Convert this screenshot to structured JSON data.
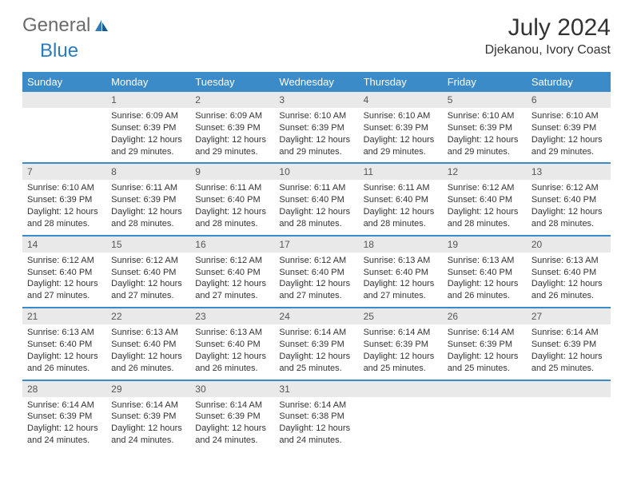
{
  "logo": {
    "general": "General",
    "blue": "Blue"
  },
  "title": "July 2024",
  "location": "Djekanou, Ivory Coast",
  "colors": {
    "header_bg": "#3b8bc9",
    "header_text": "#ffffff",
    "daynum_bg": "#e9e9e9",
    "text": "#333333",
    "logo_gray": "#6b6b6b",
    "logo_blue": "#2b7bbf"
  },
  "dayNames": [
    "Sunday",
    "Monday",
    "Tuesday",
    "Wednesday",
    "Thursday",
    "Friday",
    "Saturday"
  ],
  "weeks": [
    [
      null,
      {
        "n": "1",
        "sr": "6:09 AM",
        "ss": "6:39 PM",
        "dl": "12 hours and 29 minutes."
      },
      {
        "n": "2",
        "sr": "6:09 AM",
        "ss": "6:39 PM",
        "dl": "12 hours and 29 minutes."
      },
      {
        "n": "3",
        "sr": "6:10 AM",
        "ss": "6:39 PM",
        "dl": "12 hours and 29 minutes."
      },
      {
        "n": "4",
        "sr": "6:10 AM",
        "ss": "6:39 PM",
        "dl": "12 hours and 29 minutes."
      },
      {
        "n": "5",
        "sr": "6:10 AM",
        "ss": "6:39 PM",
        "dl": "12 hours and 29 minutes."
      },
      {
        "n": "6",
        "sr": "6:10 AM",
        "ss": "6:39 PM",
        "dl": "12 hours and 29 minutes."
      }
    ],
    [
      {
        "n": "7",
        "sr": "6:10 AM",
        "ss": "6:39 PM",
        "dl": "12 hours and 28 minutes."
      },
      {
        "n": "8",
        "sr": "6:11 AM",
        "ss": "6:39 PM",
        "dl": "12 hours and 28 minutes."
      },
      {
        "n": "9",
        "sr": "6:11 AM",
        "ss": "6:40 PM",
        "dl": "12 hours and 28 minutes."
      },
      {
        "n": "10",
        "sr": "6:11 AM",
        "ss": "6:40 PM",
        "dl": "12 hours and 28 minutes."
      },
      {
        "n": "11",
        "sr": "6:11 AM",
        "ss": "6:40 PM",
        "dl": "12 hours and 28 minutes."
      },
      {
        "n": "12",
        "sr": "6:12 AM",
        "ss": "6:40 PM",
        "dl": "12 hours and 28 minutes."
      },
      {
        "n": "13",
        "sr": "6:12 AM",
        "ss": "6:40 PM",
        "dl": "12 hours and 28 minutes."
      }
    ],
    [
      {
        "n": "14",
        "sr": "6:12 AM",
        "ss": "6:40 PM",
        "dl": "12 hours and 27 minutes."
      },
      {
        "n": "15",
        "sr": "6:12 AM",
        "ss": "6:40 PM",
        "dl": "12 hours and 27 minutes."
      },
      {
        "n": "16",
        "sr": "6:12 AM",
        "ss": "6:40 PM",
        "dl": "12 hours and 27 minutes."
      },
      {
        "n": "17",
        "sr": "6:12 AM",
        "ss": "6:40 PM",
        "dl": "12 hours and 27 minutes."
      },
      {
        "n": "18",
        "sr": "6:13 AM",
        "ss": "6:40 PM",
        "dl": "12 hours and 27 minutes."
      },
      {
        "n": "19",
        "sr": "6:13 AM",
        "ss": "6:40 PM",
        "dl": "12 hours and 26 minutes."
      },
      {
        "n": "20",
        "sr": "6:13 AM",
        "ss": "6:40 PM",
        "dl": "12 hours and 26 minutes."
      }
    ],
    [
      {
        "n": "21",
        "sr": "6:13 AM",
        "ss": "6:40 PM",
        "dl": "12 hours and 26 minutes."
      },
      {
        "n": "22",
        "sr": "6:13 AM",
        "ss": "6:40 PM",
        "dl": "12 hours and 26 minutes."
      },
      {
        "n": "23",
        "sr": "6:13 AM",
        "ss": "6:40 PM",
        "dl": "12 hours and 26 minutes."
      },
      {
        "n": "24",
        "sr": "6:14 AM",
        "ss": "6:39 PM",
        "dl": "12 hours and 25 minutes."
      },
      {
        "n": "25",
        "sr": "6:14 AM",
        "ss": "6:39 PM",
        "dl": "12 hours and 25 minutes."
      },
      {
        "n": "26",
        "sr": "6:14 AM",
        "ss": "6:39 PM",
        "dl": "12 hours and 25 minutes."
      },
      {
        "n": "27",
        "sr": "6:14 AM",
        "ss": "6:39 PM",
        "dl": "12 hours and 25 minutes."
      }
    ],
    [
      {
        "n": "28",
        "sr": "6:14 AM",
        "ss": "6:39 PM",
        "dl": "12 hours and 24 minutes."
      },
      {
        "n": "29",
        "sr": "6:14 AM",
        "ss": "6:39 PM",
        "dl": "12 hours and 24 minutes."
      },
      {
        "n": "30",
        "sr": "6:14 AM",
        "ss": "6:39 PM",
        "dl": "12 hours and 24 minutes."
      },
      {
        "n": "31",
        "sr": "6:14 AM",
        "ss": "6:38 PM",
        "dl": "12 hours and 24 minutes."
      },
      null,
      null,
      null
    ]
  ],
  "labels": {
    "sunrise": "Sunrise:",
    "sunset": "Sunset:",
    "daylight": "Daylight:"
  }
}
